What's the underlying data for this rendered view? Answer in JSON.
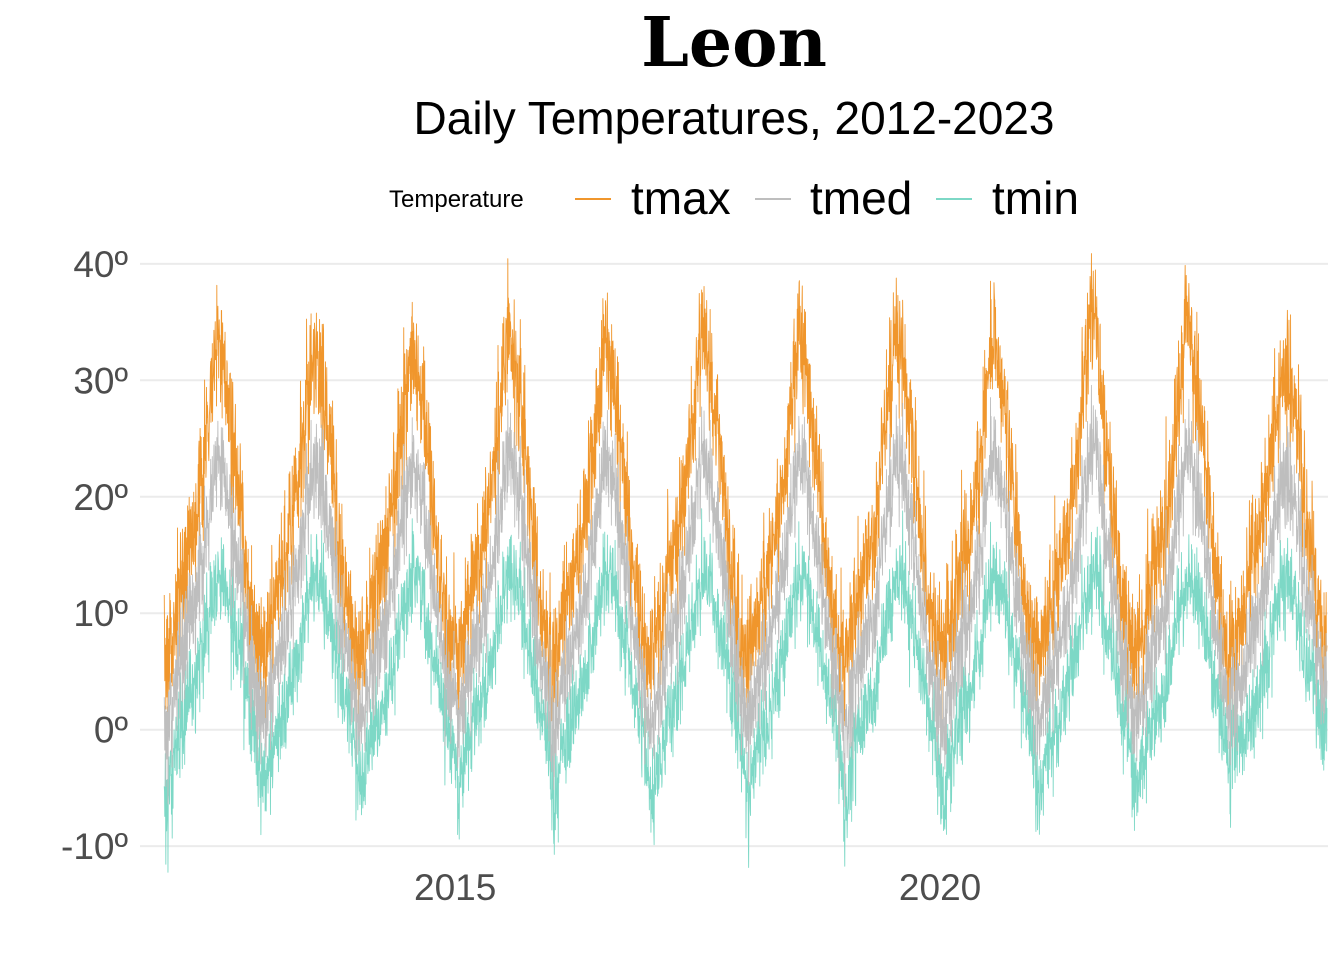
{
  "chart_data": {
    "type": "line",
    "title": "Leon",
    "subtitle": "Daily Temperatures, 2012-2023",
    "legend_title": "Temperature",
    "legend_position": "top",
    "xlabel": "",
    "ylabel": "",
    "x_range": [
      "2012-01-01",
      "2023-12-31"
    ],
    "xlim": [
      2011.75,
      2024.0
    ],
    "x_ticks": [
      2015,
      2020
    ],
    "x_tick_labels": [
      "2015",
      "2020"
    ],
    "ylim": [
      -10.5,
      40.5
    ],
    "y_ticks": [
      -10,
      0,
      10,
      20,
      30,
      40
    ],
    "y_tick_labels": [
      "-10º",
      "0º",
      "10º",
      "20º",
      "30º",
      "40º"
    ],
    "grid": true,
    "series": [
      {
        "name": "tmax",
        "color": "#f0962c",
        "monthly_mean": [
          7,
          10,
          14,
          16,
          21,
          27,
          31,
          30,
          25,
          18,
          11,
          7
        ],
        "annual_peaks": [
          35,
          33,
          32.5,
          34,
          34,
          35,
          35.5,
          34.5,
          35,
          38,
          37.5
        ]
      },
      {
        "name": "tmed",
        "color": "#bebebe",
        "monthly_mean": [
          3,
          4,
          7,
          9,
          13,
          18,
          21,
          21,
          17,
          12,
          7,
          4
        ]
      },
      {
        "name": "tmin",
        "color": "#7dd8c6",
        "monthly_mean": [
          -2,
          -1,
          1,
          3,
          6,
          10,
          13,
          13,
          9,
          6,
          2,
          0
        ],
        "annual_troughs": [
          -8.5,
          -6,
          -5.5,
          -6.5,
          -7,
          -8.5,
          -8,
          -8,
          -8,
          -7,
          -6.5,
          0
        ]
      }
    ]
  }
}
